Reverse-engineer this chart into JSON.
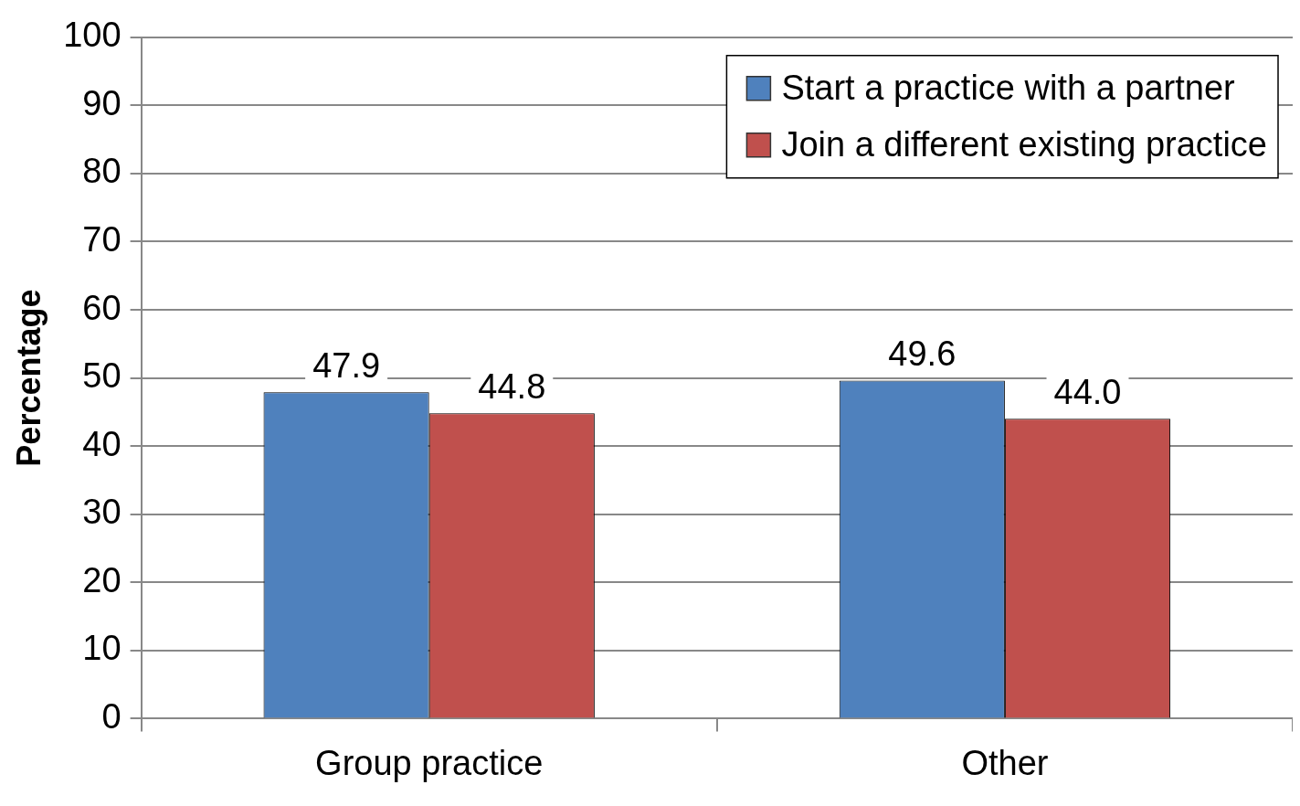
{
  "chart_data": {
    "type": "bar",
    "ylabel": "Percentage",
    "categories": [
      "Group practice",
      "Other"
    ],
    "series": [
      {
        "name": "Start a practice with a partner",
        "color": "#4f81bd",
        "values": [
          47.9,
          49.6
        ],
        "value_labels": [
          "47.9",
          "49.6"
        ]
      },
      {
        "name": "Join a different existing practice",
        "color": "#c0504d",
        "values": [
          44.8,
          44.0
        ],
        "value_labels": [
          "44.8",
          "44.0"
        ]
      }
    ],
    "ylim": [
      0,
      100
    ],
    "yticks": [
      0,
      10,
      20,
      30,
      40,
      50,
      60,
      70,
      80,
      90,
      100
    ],
    "grid": "y",
    "legend": "top right"
  }
}
